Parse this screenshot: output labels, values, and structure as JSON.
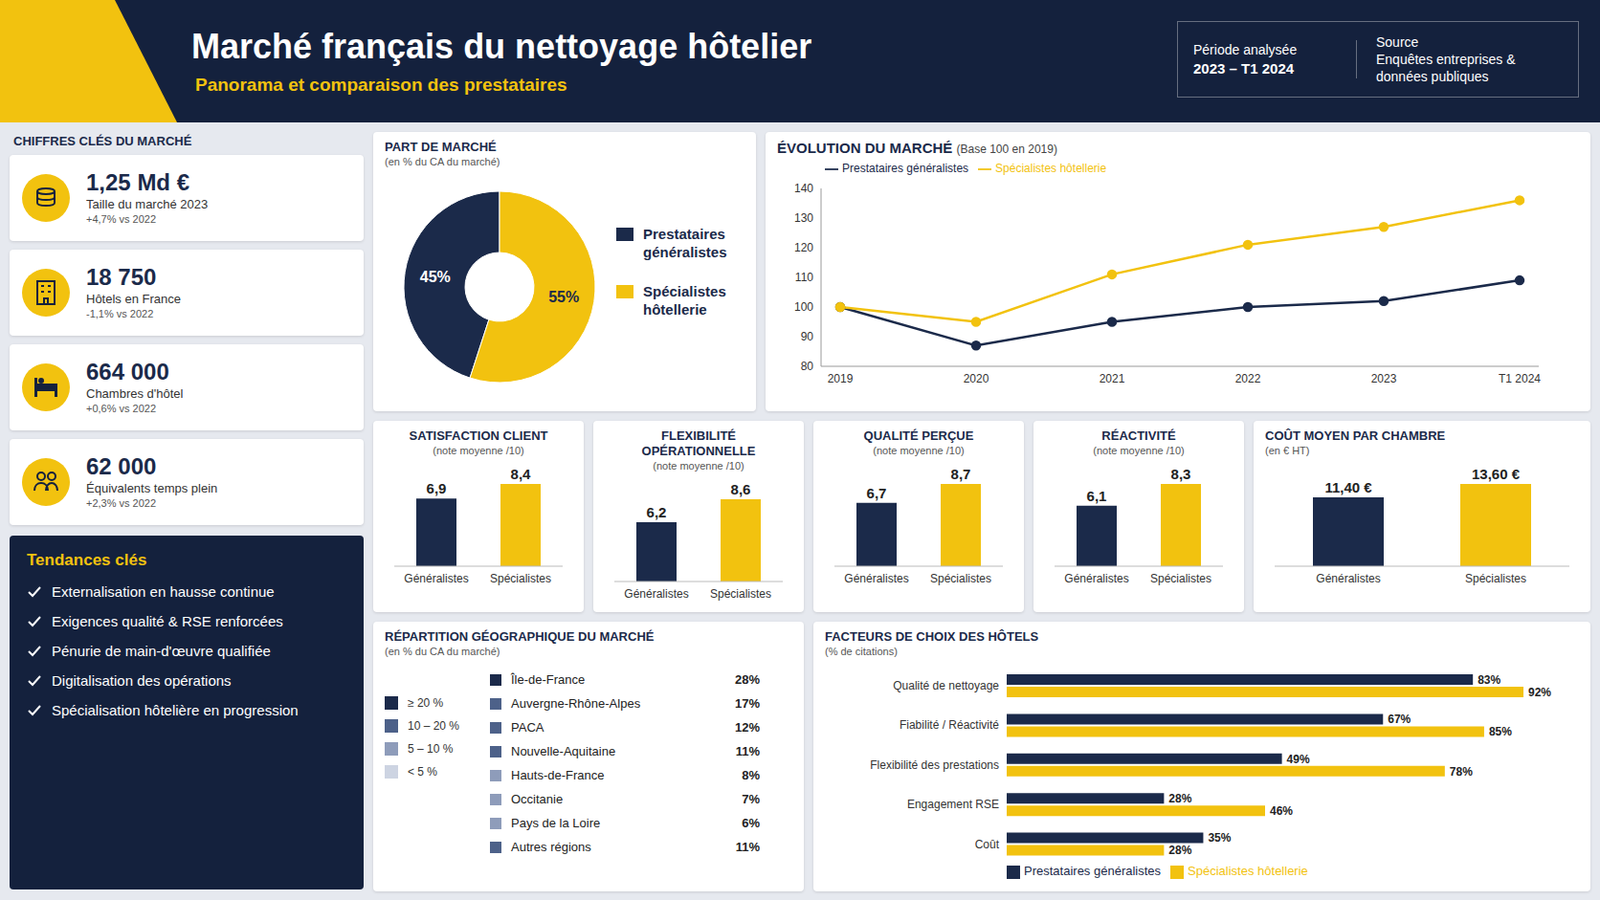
{
  "header": {
    "title": "Marché français du nettoyage hôtelier",
    "subtitle": "Panorama et comparaison des prestataires",
    "period_label": "Période analysée",
    "period": "2023 – T1 2024",
    "source_label": "Source",
    "source": "Enquêtes entreprises & données publiques"
  },
  "key_figures": {
    "title": "CHIFFRES CLÉS DU MARCHÉ",
    "items": [
      {
        "value": "1,25 Md €",
        "label": "Taille du marché 2023",
        "change": "+4,7% vs 2022"
      },
      {
        "value": "18 750",
        "label": "Hôtels en France",
        "change": "-1,1% vs 2022"
      },
      {
        "value": "664 000",
        "label": "Chambres d'hôtel",
        "change": "+0,6% vs 2022"
      },
      {
        "value": "62 000",
        "label": "Équivalents temps plein",
        "change": "+2,3% vs 2022"
      }
    ]
  },
  "trends": {
    "title": "Tendances clés",
    "items": [
      "Externalisation en hausse continue",
      "Exigences qualité & RSE renforcées",
      "Pénurie de main-d'œuvre qualifiée",
      "Digitalisation des opérations",
      "Spécialisation hôtelière en progression"
    ]
  },
  "geo": {
    "title": "RÉPARTITION GÉOGRAPHIQUE DU MARCHÉ",
    "subtitle": "(en % du CA du marché)",
    "bins": [
      {
        "label": "≥ 20 %",
        "min": 20,
        "color": "#1b2a4a"
      },
      {
        "label": "10 – 20 %",
        "min": 10,
        "color": "#4d6189"
      },
      {
        "label": "5 – 10 %",
        "min": 5,
        "color": "#8e9cba"
      },
      {
        "label": "< 5 %",
        "min": 0,
        "color": "#cdd4e2"
      }
    ],
    "regions": [
      {
        "name": "Île-de-France",
        "value": 28,
        "value_label": "28%"
      },
      {
        "name": "Auvergne-Rhône-Alpes",
        "value": 17,
        "value_label": "17%"
      },
      {
        "name": "PACA",
        "value": 12,
        "value_label": "12%"
      },
      {
        "name": "Nouvelle-Aquitaine",
        "value": 11,
        "value_label": "11%"
      },
      {
        "name": "Hauts-de-France",
        "value": 8,
        "value_label": "8%"
      },
      {
        "name": "Occitanie",
        "value": 7,
        "value_label": "7%"
      },
      {
        "name": "Pays de la Loire",
        "value": 6,
        "value_label": "6%"
      },
      {
        "name": "Autres régions",
        "value": 11,
        "value_label": "11%"
      }
    ]
  },
  "chart_data": [
    {
      "type": "pie",
      "title": "PART DE MARCHÉ",
      "subtitle": "(en % du CA du marché)",
      "categories": [
        "Prestataires généralistes",
        "Spécialistes hôtellerie"
      ],
      "values": [
        45,
        55
      ],
      "value_labels": [
        "45%",
        "55%"
      ],
      "colors": [
        "#1b2a4a",
        "#f2c20f"
      ],
      "data_labels": true,
      "legend": "right"
    },
    {
      "type": "line",
      "title": "ÉVOLUTION DU MARCHÉ",
      "subtitle": "(Base 100 en 2019)",
      "categories": [
        "2019",
        "2020",
        "2021",
        "2022",
        "2023",
        "T1 2024"
      ],
      "series": [
        {
          "name": "Prestataires généralistes",
          "color": "#1b2a4a",
          "marker": "circle",
          "values": [
            100,
            87,
            95,
            100,
            102,
            109
          ]
        },
        {
          "name": "Spécialistes hôtellerie",
          "color": "#f2c20f",
          "marker": "circle",
          "values": [
            100,
            95,
            111,
            121,
            127,
            136
          ]
        }
      ],
      "ylim": [
        80,
        140
      ],
      "yticks": [
        80,
        90,
        100,
        110,
        120,
        130,
        140
      ],
      "grid": false,
      "legend": "top"
    },
    {
      "type": "bar",
      "title": "SATISFACTION CLIENT",
      "subtitle": "(note moyenne /10)",
      "categories": [
        "Généralistes",
        "Spécialistes"
      ],
      "values": [
        6.9,
        8.4
      ],
      "value_labels": [
        "6,9",
        "8,4"
      ],
      "colors": [
        "#1b2a4a",
        "#f2c20f"
      ],
      "data_labels": true,
      "tick_labels": "x"
    },
    {
      "type": "bar",
      "title": "FLEXIBILITÉ OPÉRATIONNELLE",
      "subtitle": "(note moyenne /10)",
      "categories": [
        "Généralistes",
        "Spécialistes"
      ],
      "values": [
        6.2,
        8.6
      ],
      "value_labels": [
        "6,2",
        "8,6"
      ],
      "colors": [
        "#1b2a4a",
        "#f2c20f"
      ],
      "data_labels": true,
      "tick_labels": "x"
    },
    {
      "type": "bar",
      "title": "QUALITÉ PERÇUE",
      "subtitle": "(note moyenne /10)",
      "categories": [
        "Généralistes",
        "Spécialistes"
      ],
      "values": [
        6.7,
        8.7
      ],
      "value_labels": [
        "6,7",
        "8,7"
      ],
      "colors": [
        "#1b2a4a",
        "#f2c20f"
      ],
      "data_labels": true,
      "tick_labels": "x"
    },
    {
      "type": "bar",
      "title": "RÉACTIVITÉ",
      "subtitle": "(note moyenne /10)",
      "categories": [
        "Généralistes",
        "Spécialistes"
      ],
      "values": [
        6.1,
        8.3
      ],
      "value_labels": [
        "6,1",
        "8,3"
      ],
      "colors": [
        "#1b2a4a",
        "#f2c20f"
      ],
      "data_labels": true,
      "tick_labels": "x"
    },
    {
      "type": "bar",
      "title": "COÛT MOYEN PAR CHAMBRE",
      "subtitle": "(en € HT)",
      "categories": [
        "Généralistes",
        "Spécialistes"
      ],
      "values": [
        11.4,
        13.6
      ],
      "value_labels": [
        "11,40 €",
        "13,60 €"
      ],
      "colors": [
        "#1b2a4a",
        "#f2c20f"
      ],
      "data_labels": true,
      "tick_labels": "x"
    },
    {
      "type": "bar",
      "orientation": "horizontal",
      "title": "FACTEURS DE CHOIX DES HÔTELS",
      "subtitle": "(% de citations)",
      "categories": [
        "Qualité de nettoyage",
        "Fiabilité / Réactivité",
        "Flexibilité des prestations",
        "Engagement RSE",
        "Coût"
      ],
      "series": [
        {
          "name": "Prestataires généralistes",
          "color": "#1b2a4a",
          "values": [
            83,
            67,
            49,
            28,
            35
          ],
          "value_labels": [
            "83%",
            "67%",
            "49%",
            "28%",
            "35%"
          ]
        },
        {
          "name": "Spécialistes hôtellerie",
          "color": "#f2c20f",
          "values": [
            92,
            85,
            78,
            46,
            28
          ],
          "value_labels": [
            "92%",
            "85%",
            "78%",
            "46%",
            "28%"
          ]
        }
      ],
      "data_labels": true,
      "legend": "bottom",
      "tick_labels": "y"
    }
  ]
}
